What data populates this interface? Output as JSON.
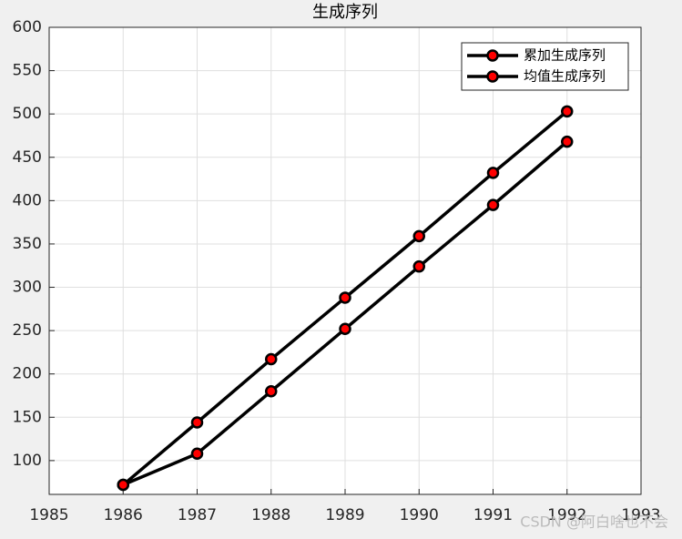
{
  "chart_data": {
    "type": "line",
    "title": "生成序列",
    "x": [
      1986,
      1987,
      1988,
      1989,
      1990,
      1991,
      1992
    ],
    "series": [
      {
        "name": "累加生成序列",
        "color": "#000000",
        "marker_color": "#ff0000",
        "values": [
          72,
          144,
          217,
          288,
          359,
          432,
          503
        ]
      },
      {
        "name": "均值生成序列",
        "color": "#000000",
        "marker_color": "#ff0000",
        "values": [
          72,
          108,
          180,
          252,
          324,
          395,
          468
        ]
      }
    ],
    "xlim": [
      1985,
      1993
    ],
    "xticks": [
      1985,
      1986,
      1987,
      1988,
      1989,
      1990,
      1991,
      1992,
      1993
    ],
    "ylim": [
      61,
      600
    ],
    "yticks": [
      100,
      150,
      200,
      250,
      300,
      350,
      400,
      450,
      500,
      550,
      600
    ],
    "grid": true,
    "legend": "northeast",
    "watermark": "CSDN @阿白啥也不会"
  }
}
